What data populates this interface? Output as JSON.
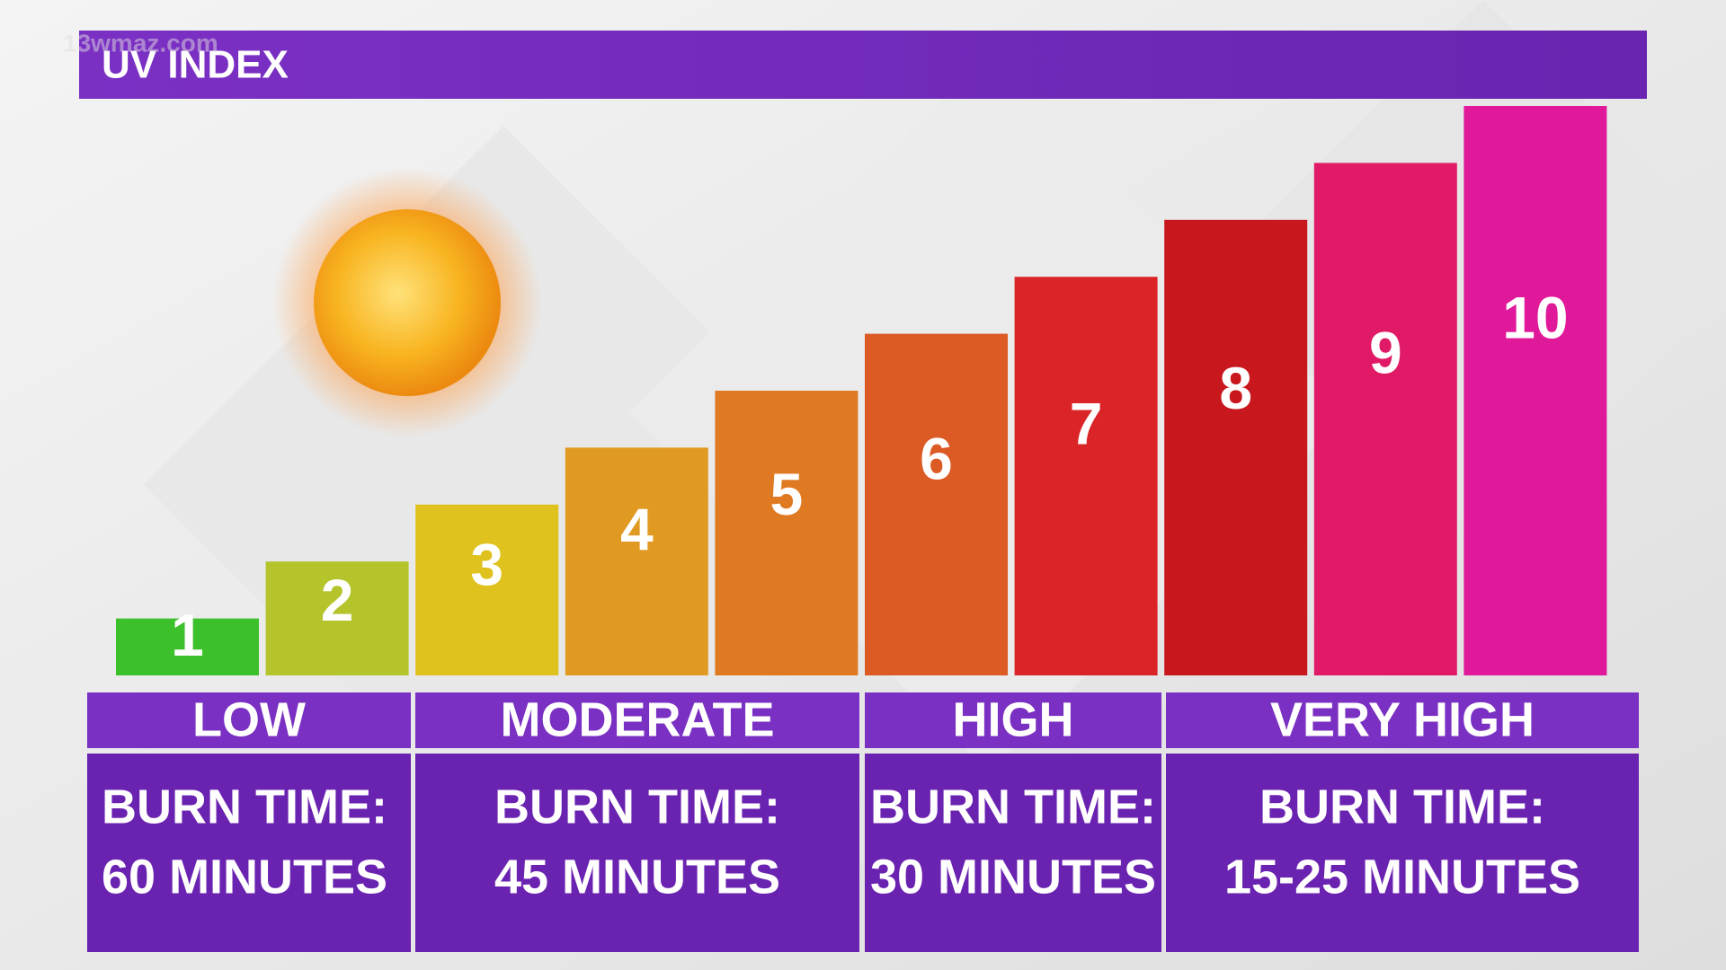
{
  "watermark": "13wmaz.com",
  "chart_data": {
    "type": "bar",
    "title": "UV INDEX",
    "values": [
      1,
      2,
      3,
      4,
      5,
      6,
      7,
      8,
      9,
      10
    ],
    "colors": [
      "#3cc02c",
      "#b4c42a",
      "#dfc21e",
      "#e09a22",
      "#e07a22",
      "#dc5a24",
      "#da2428",
      "#c8181e",
      "#e01a66",
      "#e0189a"
    ]
  },
  "bands": [
    {
      "label": "LOW",
      "burn_title": "BURN TIME:",
      "burn_time": "60 MINUTES"
    },
    {
      "label": "MODERATE",
      "burn_title": "BURN TIME:",
      "burn_time": "45 MINUTES"
    },
    {
      "label": "HIGH",
      "burn_title": "BURN TIME:",
      "burn_time": "30 MINUTES"
    },
    {
      "label": "VERY HIGH",
      "burn_title": "BURN TIME:",
      "burn_time": "15-25 MINUTES"
    }
  ]
}
